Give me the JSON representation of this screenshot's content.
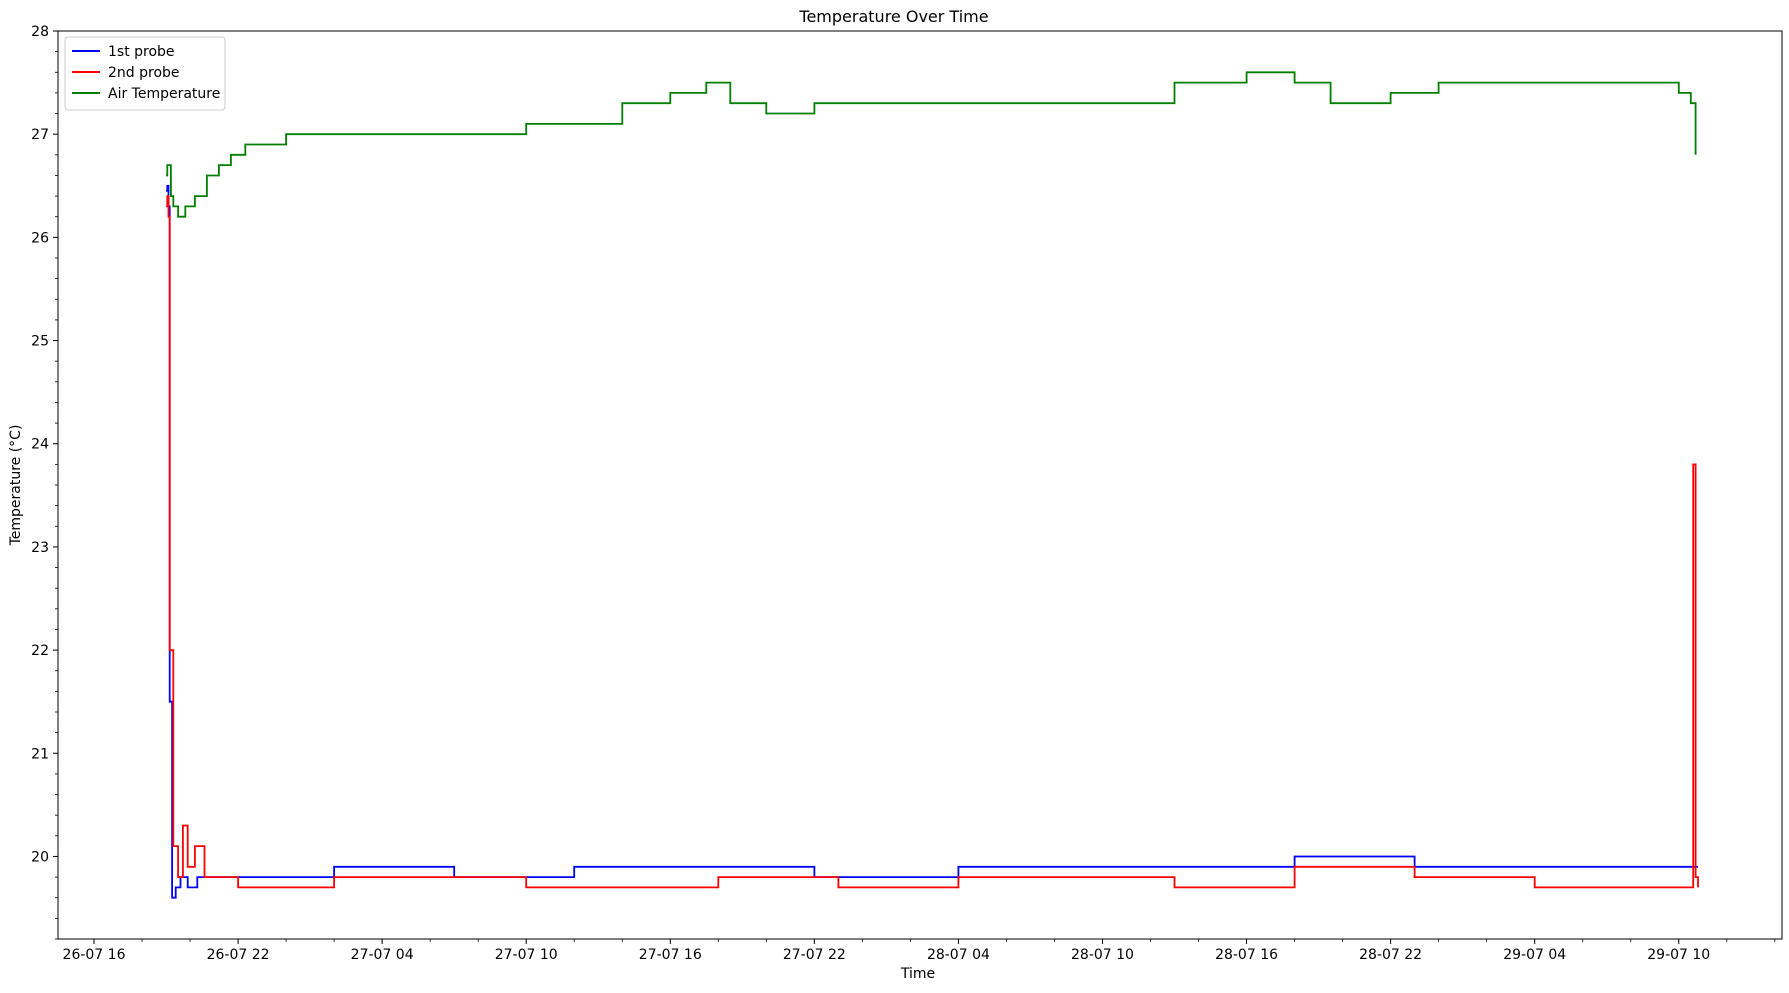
{
  "chart_data": {
    "type": "line",
    "title": "Temperature Over Time",
    "xlabel": "Time",
    "ylabel": "Temperature (°C)",
    "x_unit": "hours",
    "x_tick_labels": [
      "26-07 16",
      "26-07 22",
      "27-07 04",
      "27-07 10",
      "27-07 16",
      "27-07 22",
      "28-07 04",
      "28-07 10",
      "28-07 16",
      "28-07 22",
      "29-07 04",
      "29-07 10"
    ],
    "x_tick_hours": [
      0,
      6,
      12,
      18,
      24,
      30,
      36,
      42,
      48,
      54,
      60,
      66
    ],
    "xlim": [
      -1.5,
      70.3
    ],
    "ylim": [
      19.2,
      28.0
    ],
    "y_ticks": [
      20,
      21,
      22,
      23,
      24,
      25,
      26,
      27,
      28
    ],
    "grid": false,
    "legend": "top-left",
    "series": [
      {
        "name": "1st probe",
        "color": "#0000ff",
        "x": [
          3.0,
          3.05,
          3.1,
          3.15,
          3.25,
          3.4,
          3.6,
          3.9,
          4.3,
          5.0,
          6.0,
          10.0,
          15.0,
          20.0,
          25.0,
          30.0,
          36.0,
          40.0,
          45.0,
          50.0,
          55.0,
          60.0,
          64.0,
          66.5,
          66.7,
          66.8
        ],
        "y": [
          26.45,
          26.5,
          26.3,
          21.5,
          19.6,
          19.7,
          19.8,
          19.7,
          19.8,
          19.8,
          19.8,
          19.9,
          19.8,
          19.9,
          19.9,
          19.8,
          19.9,
          19.9,
          19.9,
          20.0,
          19.9,
          19.9,
          19.9,
          19.9,
          19.9,
          19.9
        ]
      },
      {
        "name": "2nd probe",
        "color": "#ff0000",
        "x": [
          3.0,
          3.05,
          3.1,
          3.15,
          3.3,
          3.5,
          3.7,
          3.9,
          4.2,
          4.6,
          5.0,
          6.0,
          10.0,
          14.0,
          18.0,
          22.0,
          26.0,
          31.0,
          36.0,
          40.0,
          45.0,
          50.0,
          55.0,
          60.0,
          65.0,
          66.5,
          66.6,
          66.7,
          66.8
        ],
        "y": [
          26.3,
          26.4,
          26.2,
          22.0,
          20.1,
          19.8,
          20.3,
          19.9,
          20.1,
          19.8,
          19.8,
          19.7,
          19.8,
          19.8,
          19.7,
          19.7,
          19.8,
          19.7,
          19.8,
          19.8,
          19.7,
          19.9,
          19.8,
          19.7,
          19.7,
          19.7,
          23.8,
          19.8,
          19.7
        ]
      },
      {
        "name": "Air Temperature",
        "color": "#008000",
        "x": [
          3.0,
          3.05,
          3.2,
          3.3,
          3.5,
          3.8,
          4.2,
          4.7,
          5.2,
          5.7,
          6.3,
          7.2,
          8.0,
          10.0,
          12.0,
          14.0,
          16.0,
          18.0,
          19.0,
          22.0,
          24.0,
          25.5,
          26.5,
          28.0,
          30.0,
          33.0,
          36.0,
          39.0,
          42.0,
          45.0,
          48.0,
          50.0,
          51.5,
          54.0,
          56.0,
          60.0,
          64.0,
          66.0,
          66.5,
          66.7
        ],
        "y": [
          26.6,
          26.7,
          26.4,
          26.3,
          26.2,
          26.3,
          26.4,
          26.6,
          26.7,
          26.8,
          26.9,
          26.9,
          27.0,
          27.0,
          27.0,
          27.0,
          27.0,
          27.1,
          27.1,
          27.3,
          27.4,
          27.5,
          27.3,
          27.2,
          27.3,
          27.3,
          27.3,
          27.3,
          27.3,
          27.5,
          27.6,
          27.5,
          27.3,
          27.4,
          27.5,
          27.5,
          27.5,
          27.4,
          27.3,
          26.8
        ]
      }
    ]
  }
}
